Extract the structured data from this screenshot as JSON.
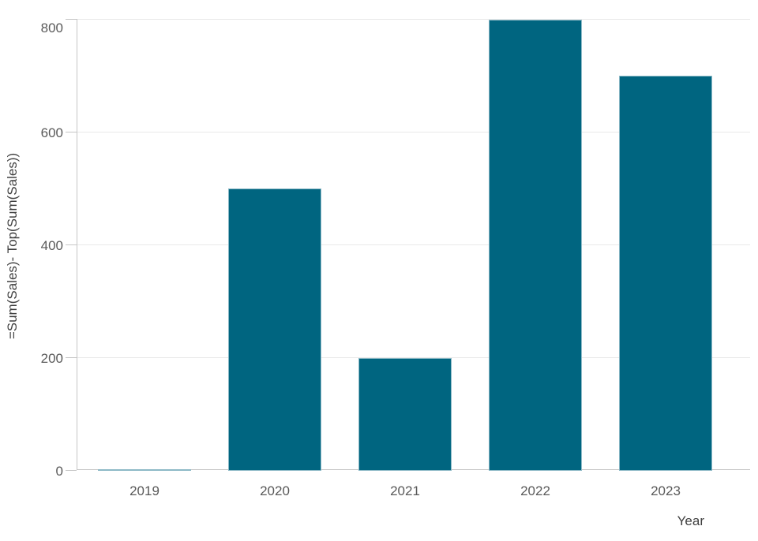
{
  "chart_data": {
    "type": "bar",
    "title": "",
    "categories": [
      "2019",
      "2020",
      "2021",
      "2022",
      "2023"
    ],
    "values": [
      0,
      500,
      200,
      800,
      700
    ],
    "xlabel": "Year",
    "ylabel": "=Sum(Sales)- Top(Sum(Sales))",
    "y_ticks": [
      0,
      200,
      400,
      600,
      800
    ],
    "ylim": [
      0,
      800
    ],
    "grid": true,
    "legend_position": "none",
    "bar_color": "#006580",
    "bar_edge_color": "rgba(255,255,255,0.55)",
    "gridline_color": "#e9e9e9",
    "axis_line_color": "#c6c6c6",
    "tick_label_color": "#595959",
    "axis_title_color": "#404040",
    "background_color": "#ffffff"
  }
}
